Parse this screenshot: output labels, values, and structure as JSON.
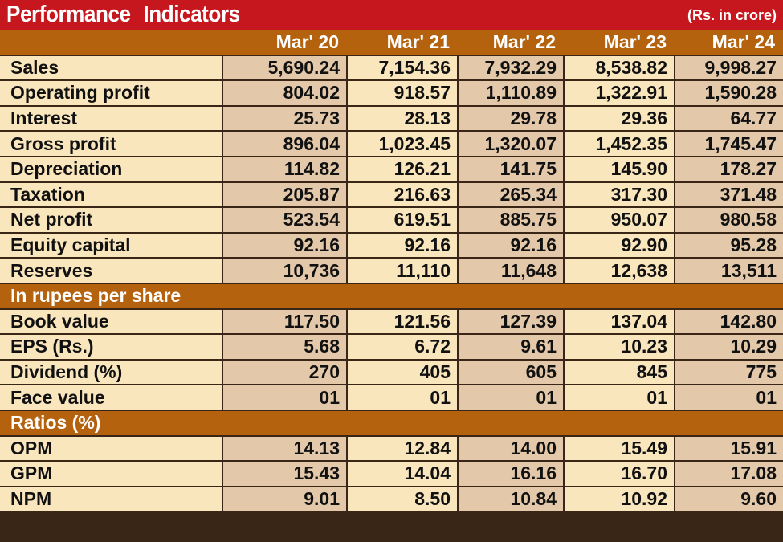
{
  "title": "Performance  Indicators",
  "unit": "(Rs. in crore)",
  "columns": [
    "Mar' 20",
    "Mar' 21",
    "Mar' 22",
    "Mar' 23",
    "Mar' 24"
  ],
  "rows": [
    {
      "label": "Sales",
      "values": [
        "5,690.24",
        "7,154.36",
        "7,932.29",
        "8,538.82",
        "9,998.27"
      ]
    },
    {
      "label": "Operating profit",
      "values": [
        "804.02",
        "918.57",
        "1,110.89",
        "1,322.91",
        "1,590.28"
      ]
    },
    {
      "label": "Interest",
      "values": [
        "25.73",
        "28.13",
        "29.78",
        "29.36",
        "64.77"
      ]
    },
    {
      "label": "Gross profit",
      "values": [
        "896.04",
        "1,023.45",
        "1,320.07",
        "1,452.35",
        "1,745.47"
      ]
    },
    {
      "label": "Depreciation",
      "values": [
        "114.82",
        "126.21",
        "141.75",
        "145.90",
        "178.27"
      ]
    },
    {
      "label": "Taxation",
      "values": [
        "205.87",
        "216.63",
        "265.34",
        "317.30",
        "371.48"
      ]
    },
    {
      "label": "Net profit",
      "values": [
        "523.54",
        "619.51",
        "885.75",
        "950.07",
        "980.58"
      ]
    },
    {
      "label": "Equity capital",
      "values": [
        "92.16",
        "92.16",
        "92.16",
        "92.90",
        "95.28"
      ]
    },
    {
      "label": "Reserves",
      "values": [
        "10,736",
        "11,110",
        "11,648",
        "12,638",
        "13,511"
      ]
    }
  ],
  "section_per_share": {
    "title": "In rupees per share",
    "rows": [
      {
        "label": "Book value",
        "values": [
          "117.50",
          "121.56",
          "127.39",
          "137.04",
          "142.80"
        ]
      },
      {
        "label": "EPS (Rs.)",
        "values": [
          "5.68",
          "6.72",
          "9.61",
          "10.23",
          "10.29"
        ]
      },
      {
        "label": "Dividend (%)",
        "values": [
          "270",
          "405",
          "605",
          "845",
          "775"
        ]
      },
      {
        "label": "Face value",
        "values": [
          "01",
          "01",
          "01",
          "01",
          "01"
        ]
      }
    ]
  },
  "section_ratios": {
    "title": "Ratios (%)",
    "rows": [
      {
        "label": "OPM",
        "values": [
          "14.13",
          "12.84",
          "14.00",
          "15.49",
          "15.91"
        ]
      },
      {
        "label": "GPM",
        "values": [
          "15.43",
          "14.04",
          "16.16",
          "16.70",
          "17.08"
        ]
      },
      {
        "label": "NPM",
        "values": [
          "9.01",
          "8.50",
          "10.84",
          "10.92",
          "9.60"
        ]
      }
    ]
  },
  "colors": {
    "title_bg": "#c6171e",
    "header_bg": "#b5620f",
    "row_light": "#fae6bd",
    "row_shaded": "#e3c8aa",
    "divider": "#3a2616"
  }
}
